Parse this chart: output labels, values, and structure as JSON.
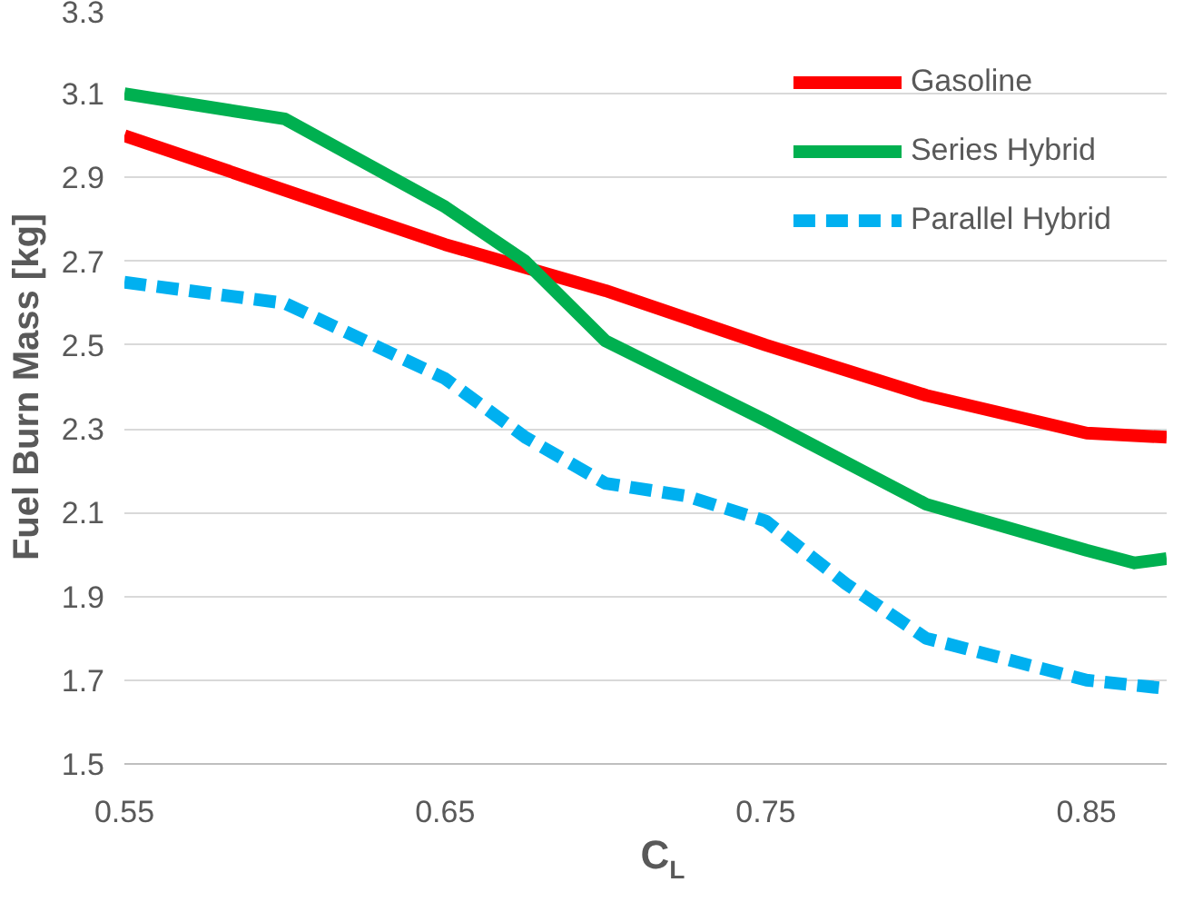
{
  "chart_data": {
    "type": "line",
    "xlabel": "C$_{L}$",
    "ylabel": "Fuel Burn Mass [kg]",
    "xlim": [
      0.55,
      0.875
    ],
    "xticks": [
      0.55,
      0.65,
      0.75,
      0.85
    ],
    "ylim": [
      1.5,
      3.3
    ],
    "yticks": [
      1.5,
      1.7,
      1.9,
      2.1,
      2.3,
      2.5,
      2.7,
      2.9,
      3.1,
      3.3
    ],
    "grid": "y",
    "legend": "top right",
    "marker": "none",
    "series": [
      {
        "name": "Gasoline",
        "color": "#ff0000",
        "line_style": "solid",
        "x": [
          0.55,
          0.6,
          0.65,
          0.7,
          0.75,
          0.8,
          0.85,
          0.875
        ],
        "values": [
          3.0,
          2.87,
          2.74,
          2.63,
          2.5,
          2.38,
          2.29,
          2.28
        ]
      },
      {
        "name": "Series Hybrid",
        "color": "#00b050",
        "line_style": "solid",
        "x": [
          0.55,
          0.6,
          0.65,
          0.675,
          0.7,
          0.75,
          0.8,
          0.85,
          0.865,
          0.875
        ],
        "values": [
          3.1,
          3.04,
          2.83,
          2.7,
          2.51,
          2.32,
          2.12,
          2.01,
          1.98,
          1.99
        ]
      },
      {
        "name": "Parallel Hybrid",
        "color": "#00b0f0",
        "line_style": "dashed",
        "x": [
          0.55,
          0.6,
          0.65,
          0.675,
          0.7,
          0.725,
          0.75,
          0.775,
          0.8,
          0.85,
          0.875
        ],
        "values": [
          2.65,
          2.6,
          2.42,
          2.28,
          2.17,
          2.14,
          2.08,
          1.93,
          1.8,
          1.7,
          1.68
        ]
      }
    ]
  }
}
